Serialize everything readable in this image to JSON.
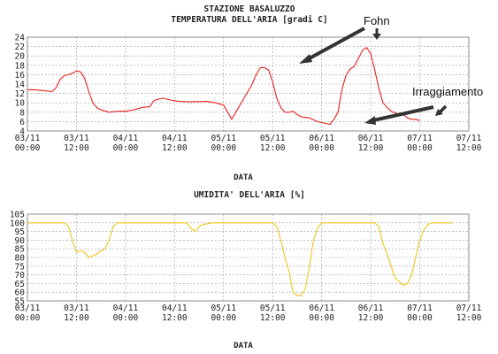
{
  "page": {
    "station_title": "STAZIONE BASALUZZO",
    "annotations": {
      "fohn": "Fohn",
      "irraggiamento": "Irraggiamento"
    }
  },
  "chart_data": [
    {
      "type": "line",
      "title": "TEMPERATURA DELL'ARIA [gradi C]",
      "xlabel": "DATA",
      "ylabel": "",
      "x_tick_labels": [
        "03/11 00:00",
        "03/11 12:00",
        "04/11 00:00",
        "04/11 12:00",
        "05/11 00:00",
        "05/11 12:00",
        "06/11 00:00",
        "06/11 12:00",
        "07/11 00:00",
        "07/11 12:00"
      ],
      "x_range_hours": [
        0,
        108
      ],
      "yticks": [
        4,
        6,
        8,
        10,
        12,
        14,
        16,
        18,
        20,
        22,
        24
      ],
      "ylim": [
        4,
        24
      ],
      "grid": true,
      "color": "#e8201f",
      "series": [
        {
          "points": [
            [
              0,
              12.8
            ],
            [
              2,
              12.8
            ],
            [
              4,
              12.6
            ],
            [
              6,
              12.4
            ],
            [
              7,
              13.2
            ],
            [
              8,
              15
            ],
            [
              9,
              15.8
            ],
            [
              10,
              16
            ],
            [
              11,
              16.3
            ],
            [
              12,
              16.8
            ],
            [
              13,
              16.6
            ],
            [
              14,
              15.2
            ],
            [
              15,
              12.5
            ],
            [
              16,
              10
            ],
            [
              17,
              9
            ],
            [
              18,
              8.5
            ],
            [
              20,
              8
            ],
            [
              22,
              8.2
            ],
            [
              24,
              8.2
            ],
            [
              26,
              8.5
            ],
            [
              28,
              9
            ],
            [
              30,
              9.2
            ],
            [
              31,
              10.5
            ],
            [
              33,
              11
            ],
            [
              35,
              10.6
            ],
            [
              37,
              10.3
            ],
            [
              40,
              10.2
            ],
            [
              44,
              10.3
            ],
            [
              46,
              10
            ],
            [
              48,
              9.5
            ],
            [
              49,
              8
            ],
            [
              50,
              6.5
            ],
            [
              51,
              8
            ],
            [
              52,
              9.5
            ],
            [
              53,
              11
            ],
            [
              54,
              12.5
            ],
            [
              55,
              14
            ],
            [
              56,
              16
            ],
            [
              57,
              17.5
            ],
            [
              58,
              17.5
            ],
            [
              59,
              17
            ],
            [
              60,
              14.5
            ],
            [
              61,
              11
            ],
            [
              62,
              9
            ],
            [
              63,
              8
            ],
            [
              64,
              8
            ],
            [
              65,
              8.2
            ],
            [
              66,
              7.5
            ],
            [
              67,
              7
            ],
            [
              69,
              6.8
            ],
            [
              71,
              6
            ],
            [
              73,
              5.6
            ],
            [
              74,
              5.4
            ],
            [
              75,
              6.5
            ],
            [
              76,
              8
            ],
            [
              77,
              13
            ],
            [
              78,
              16
            ],
            [
              79,
              17.2
            ],
            [
              80,
              17.8
            ],
            [
              81,
              19.5
            ],
            [
              82,
              21.2
            ],
            [
              83,
              21.8
            ],
            [
              84,
              20.5
            ],
            [
              85,
              17
            ],
            [
              86,
              13
            ],
            [
              87,
              10
            ],
            [
              88,
              9
            ],
            [
              89,
              8.2
            ],
            [
              91,
              7.5
            ],
            [
              92,
              7.5
            ],
            [
              93,
              6.8
            ],
            [
              94,
              6.5
            ],
            [
              95,
              6.5
            ],
            [
              96,
              6.2
            ]
          ]
        }
      ]
    },
    {
      "type": "line",
      "title": "UMIDITA' DELL'ARIA [%]",
      "xlabel": "DATA",
      "ylabel": "",
      "x_tick_labels": [
        "03/11 00:00",
        "03/11 12:00",
        "04/11 00:00",
        "04/11 12:00",
        "05/11 00:00",
        "05/11 12:00",
        "06/11 00:00",
        "06/11 12:00",
        "07/11 00:00",
        "07/11 12:00"
      ],
      "x_range_hours": [
        0,
        108
      ],
      "yticks": [
        55,
        60,
        65,
        70,
        75,
        80,
        85,
        90,
        95,
        100,
        105
      ],
      "ylim": [
        55,
        105
      ],
      "grid": true,
      "color": "#f0c419",
      "series": [
        {
          "points": [
            [
              0,
              100
            ],
            [
              9,
              100
            ],
            [
              10,
              98
            ],
            [
              11,
              90
            ],
            [
              12,
              83
            ],
            [
              13,
              84
            ],
            [
              14,
              83
            ],
            [
              15,
              80
            ],
            [
              16,
              81
            ],
            [
              17,
              82
            ],
            [
              18,
              84
            ],
            [
              19,
              85
            ],
            [
              20,
              90
            ],
            [
              21,
              98
            ],
            [
              22,
              100
            ],
            [
              39,
              100
            ],
            [
              40,
              97
            ],
            [
              41,
              95
            ],
            [
              42,
              98
            ],
            [
              43,
              99
            ],
            [
              45,
              100
            ],
            [
              60,
              100
            ],
            [
              61,
              98
            ],
            [
              62,
              90
            ],
            [
              63,
              80
            ],
            [
              64,
              72
            ],
            [
              65,
              60
            ],
            [
              66,
              58
            ],
            [
              67,
              58
            ],
            [
              68,
              62
            ],
            [
              69,
              75
            ],
            [
              70,
              90
            ],
            [
              71,
              97
            ],
            [
              72,
              100
            ],
            [
              85,
              100
            ],
            [
              86,
              98
            ],
            [
              87,
              88
            ],
            [
              88,
              82
            ],
            [
              89,
              75
            ],
            [
              90,
              68
            ],
            [
              91,
              66
            ],
            [
              92,
              64
            ],
            [
              93,
              65
            ],
            [
              94,
              70
            ],
            [
              95,
              80
            ],
            [
              96,
              90
            ],
            [
              97,
              96
            ],
            [
              98,
              99
            ],
            [
              99,
              100
            ],
            [
              104,
              100
            ]
          ]
        }
      ]
    }
  ]
}
